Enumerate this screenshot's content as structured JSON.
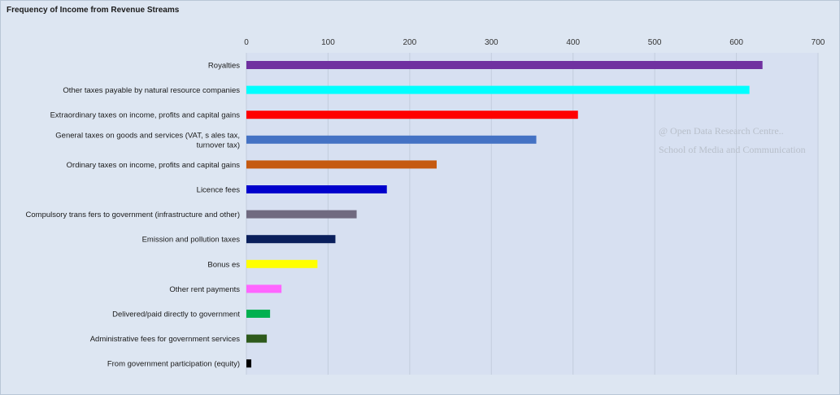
{
  "chart_data": {
    "type": "bar",
    "orientation": "horizontal",
    "title": "Frequency  of Income from Revenue Streams",
    "xlabel": "",
    "ylabel": "",
    "xlim": [
      0,
      700
    ],
    "xticks": [
      0,
      100,
      200,
      300,
      400,
      500,
      600,
      700
    ],
    "x_axis_position": "top",
    "grid": true,
    "legend": "none",
    "categories": [
      "Royalties",
      "Other taxes payable by natural resource companies",
      "Extraordinary taxes on income, profits and capital gains",
      "General taxes on goods and services (VAT, s ales tax, turnover tax)",
      "Ordinary taxes on income, profits and capital gains",
      "Licence fees",
      "Compulsory trans fers to government (infrastructure and other)",
      "Emission and pollution taxes",
      "Bonus es",
      "Other rent payments",
      "Delivered/paid directly to government",
      "Administrative fees for government services",
      "From government participation (equity)"
    ],
    "category_lines": [
      [
        "Royalties"
      ],
      [
        "Other taxes payable by natural resource companies"
      ],
      [
        "Extraordinary taxes on income, profits and capital gains"
      ],
      [
        "General taxes on goods and services (VAT, s ales tax,",
        "turnover tax)"
      ],
      [
        "Ordinary taxes on income, profits and capital gains"
      ],
      [
        "Licence fees"
      ],
      [
        "Compulsory trans fers to government (infrastructure and other)"
      ],
      [
        "Emission and pollution taxes"
      ],
      [
        "Bonus es"
      ],
      [
        "Other rent payments"
      ],
      [
        "Delivered/paid directly to government"
      ],
      [
        "Administrative fees for government services"
      ],
      [
        "From government participation (equity)"
      ]
    ],
    "values": [
      632,
      616,
      406,
      355,
      233,
      172,
      135,
      109,
      87,
      43,
      29,
      25,
      6
    ],
    "colors": [
      "#7030a0",
      "#00ffff",
      "#ff0000",
      "#4472c4",
      "#c55a11",
      "#0000cc",
      "#706a80",
      "#0a1f5c",
      "#ffff00",
      "#ff66ff",
      "#00b050",
      "#2e5a1c",
      "#000000"
    ]
  },
  "watermark": {
    "line1": "@ Open Data Research Centre..",
    "line2": "School of Media and Communication"
  }
}
